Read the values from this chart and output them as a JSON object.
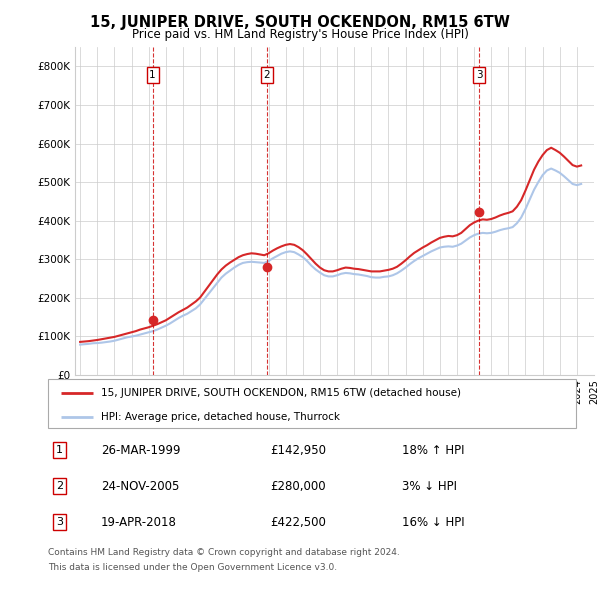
{
  "title": "15, JUNIPER DRIVE, SOUTH OCKENDON, RM15 6TW",
  "subtitle": "Price paid vs. HM Land Registry's House Price Index (HPI)",
  "ylim": [
    0,
    850000
  ],
  "yticks": [
    0,
    100000,
    200000,
    300000,
    400000,
    500000,
    600000,
    700000,
    800000
  ],
  "ytick_labels": [
    "£0",
    "£100K",
    "£200K",
    "£300K",
    "£400K",
    "£500K",
    "£600K",
    "£700K",
    "£800K"
  ],
  "hpi_color": "#aec6e8",
  "price_color": "#d62728",
  "dashed_color": "#cc0000",
  "background_color": "#ffffff",
  "grid_color": "#cccccc",
  "transactions": [
    {
      "num": 1,
      "date": "26-MAR-1999",
      "price": 142950,
      "pct": "18%",
      "dir": "↑",
      "x": 1999.23
    },
    {
      "num": 2,
      "date": "24-NOV-2005",
      "price": 280000,
      "pct": "3%",
      "dir": "↓",
      "x": 2005.9
    },
    {
      "num": 3,
      "date": "19-APR-2018",
      "price": 422500,
      "pct": "16%",
      "dir": "↓",
      "x": 2018.3
    }
  ],
  "legend_house": "15, JUNIPER DRIVE, SOUTH OCKENDON, RM15 6TW (detached house)",
  "legend_hpi": "HPI: Average price, detached house, Thurrock",
  "footer1": "Contains HM Land Registry data © Crown copyright and database right 2024.",
  "footer2": "This data is licensed under the Open Government Licence v3.0.",
  "hpi_years": [
    1995.0,
    1995.25,
    1995.5,
    1995.75,
    1996.0,
    1996.25,
    1996.5,
    1996.75,
    1997.0,
    1997.25,
    1997.5,
    1997.75,
    1998.0,
    1998.25,
    1998.5,
    1998.75,
    1999.0,
    1999.25,
    1999.5,
    1999.75,
    2000.0,
    2000.25,
    2000.5,
    2000.75,
    2001.0,
    2001.25,
    2001.5,
    2001.75,
    2002.0,
    2002.25,
    2002.5,
    2002.75,
    2003.0,
    2003.25,
    2003.5,
    2003.75,
    2004.0,
    2004.25,
    2004.5,
    2004.75,
    2005.0,
    2005.25,
    2005.5,
    2005.75,
    2006.0,
    2006.25,
    2006.5,
    2006.75,
    2007.0,
    2007.25,
    2007.5,
    2007.75,
    2008.0,
    2008.25,
    2008.5,
    2008.75,
    2009.0,
    2009.25,
    2009.5,
    2009.75,
    2010.0,
    2010.25,
    2010.5,
    2010.75,
    2011.0,
    2011.25,
    2011.5,
    2011.75,
    2012.0,
    2012.25,
    2012.5,
    2012.75,
    2013.0,
    2013.25,
    2013.5,
    2013.75,
    2014.0,
    2014.25,
    2014.5,
    2014.75,
    2015.0,
    2015.25,
    2015.5,
    2015.75,
    2016.0,
    2016.25,
    2016.5,
    2016.75,
    2017.0,
    2017.25,
    2017.5,
    2017.75,
    2018.0,
    2018.25,
    2018.5,
    2018.75,
    2019.0,
    2019.25,
    2019.5,
    2019.75,
    2020.0,
    2020.25,
    2020.5,
    2020.75,
    2021.0,
    2021.25,
    2021.5,
    2021.75,
    2022.0,
    2022.25,
    2022.5,
    2022.75,
    2023.0,
    2023.25,
    2023.5,
    2023.75,
    2024.0,
    2024.25
  ],
  "hpi_values": [
    78000,
    79000,
    80000,
    81500,
    82000,
    83000,
    84500,
    86000,
    88000,
    91000,
    94000,
    97000,
    99000,
    101000,
    104000,
    107000,
    110000,
    113000,
    117000,
    122000,
    127000,
    133000,
    140000,
    147000,
    153000,
    158000,
    165000,
    172000,
    182000,
    196000,
    210000,
    224000,
    238000,
    252000,
    262000,
    270000,
    278000,
    285000,
    290000,
    292000,
    293000,
    292000,
    291000,
    290000,
    295000,
    302000,
    308000,
    314000,
    318000,
    320000,
    318000,
    312000,
    305000,
    295000,
    283000,
    273000,
    265000,
    258000,
    255000,
    255000,
    258000,
    262000,
    264000,
    263000,
    261000,
    260000,
    258000,
    256000,
    253000,
    252000,
    252000,
    254000,
    255000,
    258000,
    263000,
    270000,
    278000,
    287000,
    295000,
    302000,
    308000,
    314000,
    320000,
    325000,
    330000,
    332000,
    333000,
    332000,
    335000,
    340000,
    348000,
    356000,
    362000,
    366000,
    368000,
    367000,
    368000,
    371000,
    375000,
    378000,
    380000,
    383000,
    393000,
    408000,
    430000,
    455000,
    480000,
    500000,
    518000,
    530000,
    535000,
    530000,
    524000,
    515000,
    505000,
    495000,
    492000,
    495000
  ],
  "price_years": [
    1995.0,
    1995.25,
    1995.5,
    1995.75,
    1996.0,
    1996.25,
    1996.5,
    1996.75,
    1997.0,
    1997.25,
    1997.5,
    1997.75,
    1998.0,
    1998.25,
    1998.5,
    1998.75,
    1999.0,
    1999.25,
    1999.5,
    1999.75,
    2000.0,
    2000.25,
    2000.5,
    2000.75,
    2001.0,
    2001.25,
    2001.5,
    2001.75,
    2002.0,
    2002.25,
    2002.5,
    2002.75,
    2003.0,
    2003.25,
    2003.5,
    2003.75,
    2004.0,
    2004.25,
    2004.5,
    2004.75,
    2005.0,
    2005.25,
    2005.5,
    2005.75,
    2006.0,
    2006.25,
    2006.5,
    2006.75,
    2007.0,
    2007.25,
    2007.5,
    2007.75,
    2008.0,
    2008.25,
    2008.5,
    2008.75,
    2009.0,
    2009.25,
    2009.5,
    2009.75,
    2010.0,
    2010.25,
    2010.5,
    2010.75,
    2011.0,
    2011.25,
    2011.5,
    2011.75,
    2012.0,
    2012.25,
    2012.5,
    2012.75,
    2013.0,
    2013.25,
    2013.5,
    2013.75,
    2014.0,
    2014.25,
    2014.5,
    2014.75,
    2015.0,
    2015.25,
    2015.5,
    2015.75,
    2016.0,
    2016.25,
    2016.5,
    2016.75,
    2017.0,
    2017.25,
    2017.5,
    2017.75,
    2018.0,
    2018.25,
    2018.5,
    2018.75,
    2019.0,
    2019.25,
    2019.5,
    2019.75,
    2020.0,
    2020.25,
    2020.5,
    2020.75,
    2021.0,
    2021.25,
    2021.5,
    2021.75,
    2022.0,
    2022.25,
    2022.5,
    2022.75,
    2023.0,
    2023.25,
    2023.5,
    2023.75,
    2024.0,
    2024.25
  ],
  "price_values": [
    85000,
    86000,
    87000,
    88500,
    90000,
    92000,
    94000,
    96000,
    98000,
    101000,
    104000,
    107000,
    110000,
    113000,
    117000,
    120000,
    123000,
    127000,
    131000,
    136000,
    141000,
    148000,
    155000,
    162000,
    168000,
    174000,
    182000,
    190000,
    200000,
    215000,
    230000,
    245000,
    260000,
    273000,
    283000,
    291000,
    298000,
    305000,
    310000,
    313000,
    315000,
    314000,
    312000,
    310000,
    315000,
    322000,
    328000,
    333000,
    337000,
    339000,
    337000,
    331000,
    323000,
    312000,
    300000,
    288000,
    278000,
    271000,
    268000,
    268000,
    271000,
    275000,
    278000,
    277000,
    275000,
    274000,
    272000,
    270000,
    268000,
    268000,
    268000,
    270000,
    272000,
    275000,
    280000,
    288000,
    297000,
    307000,
    316000,
    323000,
    330000,
    336000,
    343000,
    349000,
    355000,
    358000,
    360000,
    359000,
    362000,
    368000,
    378000,
    388000,
    395000,
    400000,
    403000,
    402000,
    404000,
    408000,
    413000,
    417000,
    420000,
    424000,
    436000,
    453000,
    478000,
    505000,
    532000,
    553000,
    570000,
    583000,
    589000,
    583000,
    576000,
    566000,
    555000,
    544000,
    540000,
    543000
  ]
}
